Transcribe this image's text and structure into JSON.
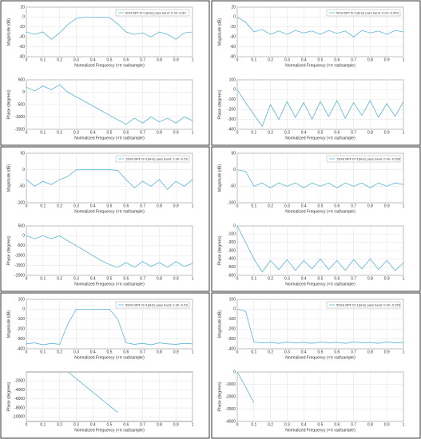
{
  "chart_data": [
    {
      "type": "line",
      "xlabel": "Normalized Frequency  (×π rad/sample)",
      "ylabel": "Magnitude (dB)",
      "x": [
        0,
        0.05,
        0.1,
        0.15,
        0.2,
        0.25,
        0.3,
        0.35,
        0.4,
        0.45,
        0.5,
        0.55,
        0.6,
        0.65,
        0.7,
        0.75,
        0.8,
        0.85,
        0.9,
        0.95,
        1
      ],
      "xlim": [
        0,
        1
      ],
      "xticks": [
        0,
        0.1,
        0.2,
        0.3,
        0.4,
        0.5,
        0.6,
        0.7,
        0.8,
        0.9,
        1
      ],
      "ylim": [
        -80,
        20
      ],
      "yticks": [
        20,
        0,
        -20,
        -40,
        -60,
        -80
      ],
      "grid": true,
      "series": [
        {
          "name": "50rd BPF fs=1(kHz) pass band: 0.3π~0.5π",
          "color": "#5ab4d6",
          "values": [
            -30,
            -35,
            -30,
            -45,
            -32,
            -15,
            -3,
            0,
            0,
            0,
            -1,
            -14,
            -30,
            -35,
            -32,
            -40,
            -30,
            -35,
            -45,
            -32,
            -30
          ]
        }
      ]
    },
    {
      "type": "line",
      "xlabel": "Normalized Frequency  (×π rad/sample)",
      "ylabel": "Phase (degrees)",
      "x": [
        0,
        0.05,
        0.1,
        0.15,
        0.2,
        0.25,
        0.3,
        0.35,
        0.4,
        0.45,
        0.5,
        0.55,
        0.6,
        0.65,
        0.7,
        0.75,
        0.8,
        0.85,
        0.9,
        0.95,
        1
      ],
      "xlim": [
        0,
        1
      ],
      "xticks": [
        0,
        0.1,
        0.2,
        0.3,
        0.4,
        0.5,
        0.6,
        0.7,
        0.8,
        0.9,
        1
      ],
      "ylim": [
        -1500,
        500
      ],
      "yticks": [
        500,
        0,
        -500,
        -1000,
        -1500
      ],
      "grid": true,
      "series": [
        {
          "color": "#5ab4d6",
          "values": [
            200,
            50,
            250,
            100,
            300,
            0,
            -186,
            -371,
            -557,
            -743,
            -929,
            -1114,
            -1300,
            -1050,
            -1250,
            -1000,
            -1200,
            -1050,
            -1250,
            -1000,
            -1150
          ]
        }
      ]
    },
    {
      "type": "line",
      "xlabel": "Normalized Frequency  (×π rad/sample)",
      "ylabel": "Magnitude (dB)",
      "x": [
        0,
        0.05,
        0.1,
        0.15,
        0.2,
        0.25,
        0.3,
        0.35,
        0.4,
        0.45,
        0.5,
        0.55,
        0.6,
        0.65,
        0.7,
        0.75,
        0.8,
        0.85,
        0.9,
        0.95,
        1
      ],
      "xlim": [
        0,
        1
      ],
      "xticks": [
        0,
        0.1,
        0.2,
        0.3,
        0.4,
        0.5,
        0.6,
        0.7,
        0.8,
        0.9,
        1
      ],
      "ylim": [
        -80,
        20
      ],
      "yticks": [
        20,
        0,
        -20,
        -40,
        -60,
        -80
      ],
      "grid": true,
      "series": [
        {
          "name": "50rd BPF fs=1(kHz) pass band: 0.0π~0.05π",
          "color": "#5ab4d6",
          "values": [
            0,
            -10,
            -30,
            -25,
            -35,
            -28,
            -35,
            -27,
            -32,
            -28,
            -35,
            -27,
            -33,
            -28,
            -40,
            -27,
            -32,
            -28,
            -35,
            -27,
            -30
          ]
        }
      ]
    },
    {
      "type": "line",
      "xlabel": "Normalized Frequency  (×π rad/sample)",
      "ylabel": "Phase (degrees)",
      "x": [
        0,
        0.05,
        0.1,
        0.15,
        0.2,
        0.25,
        0.3,
        0.35,
        0.4,
        0.45,
        0.5,
        0.55,
        0.6,
        0.65,
        0.7,
        0.75,
        0.8,
        0.85,
        0.9,
        0.95,
        1
      ],
      "xlim": [
        0,
        1
      ],
      "xticks": [
        0,
        0.1,
        0.2,
        0.3,
        0.4,
        0.5,
        0.6,
        0.7,
        0.8,
        0.9,
        1
      ],
      "ylim": [
        -400,
        100
      ],
      "yticks": [
        100,
        0,
        -100,
        -200,
        -300,
        -400
      ],
      "grid": true,
      "series": [
        {
          "color": "#5ab4d6",
          "values": [
            0,
            -130,
            -250,
            -370,
            -150,
            -300,
            -120,
            -280,
            -130,
            -300,
            -120,
            -270,
            -110,
            -290,
            -130,
            -260,
            -110,
            -280,
            -140,
            -270,
            -120
          ]
        }
      ]
    },
    {
      "type": "line",
      "xlabel": "Normalized Frequency  (×π rad/sample)",
      "ylabel": "Magnitude (dB)",
      "x": [
        0,
        0.05,
        0.1,
        0.15,
        0.2,
        0.25,
        0.3,
        0.35,
        0.4,
        0.45,
        0.5,
        0.55,
        0.6,
        0.65,
        0.7,
        0.75,
        0.8,
        0.85,
        0.9,
        0.95,
        1
      ],
      "xlim": [
        0,
        1
      ],
      "xticks": [
        0,
        0.1,
        0.2,
        0.3,
        0.4,
        0.5,
        0.6,
        0.7,
        0.8,
        0.9,
        1
      ],
      "ylim": [
        -100,
        50
      ],
      "yticks": [
        50,
        0,
        -50,
        -100
      ],
      "grid": true,
      "series": [
        {
          "name": "150rd BPF fs=1(kHz) pass band: 0.3π~0.5π",
          "color": "#5ab4d6",
          "values": [
            -30,
            -50,
            -35,
            -45,
            -30,
            -20,
            0,
            0,
            0,
            0,
            0,
            -2,
            -30,
            -55,
            -35,
            -50,
            -30,
            -60,
            -35,
            -50,
            -30
          ]
        }
      ]
    },
    {
      "type": "line",
      "xlabel": "Normalized Frequency  (×π rad/sample)",
      "ylabel": "Phase (degrees)",
      "x": [
        0,
        0.05,
        0.1,
        0.15,
        0.2,
        0.25,
        0.3,
        0.35,
        0.4,
        0.45,
        0.5,
        0.55,
        0.6,
        0.65,
        0.7,
        0.75,
        0.8,
        0.85,
        0.9,
        0.95,
        1
      ],
      "xlim": [
        0,
        1
      ],
      "xticks": [
        0,
        0.1,
        0.2,
        0.3,
        0.4,
        0.5,
        0.6,
        0.7,
        0.8,
        0.9,
        1
      ],
      "ylim": [
        -2000,
        500
      ],
      "yticks": [
        500,
        0,
        -500,
        -1000,
        -1500,
        -2000
      ],
      "grid": true,
      "series": [
        {
          "color": "#5ab4d6",
          "values": [
            0,
            -150,
            0,
            -150,
            0,
            -250,
            -500,
            -750,
            -1000,
            -1250,
            -1450,
            -1600,
            -1350,
            -1600,
            -1300,
            -1550,
            -1350,
            -1600,
            -1300,
            -1550,
            -1400
          ]
        }
      ]
    },
    {
      "type": "line",
      "xlabel": "Normalized Frequency  (×π rad/sample)",
      "ylabel": "Magnitude (dB)",
      "x": [
        0,
        0.05,
        0.1,
        0.15,
        0.2,
        0.25,
        0.3,
        0.35,
        0.4,
        0.45,
        0.5,
        0.55,
        0.6,
        0.65,
        0.7,
        0.75,
        0.8,
        0.85,
        0.9,
        0.95,
        1
      ],
      "xlim": [
        0,
        1
      ],
      "xticks": [
        0,
        0.1,
        0.2,
        0.3,
        0.4,
        0.5,
        0.6,
        0.7,
        0.8,
        0.9,
        1
      ],
      "ylim": [
        -100,
        50
      ],
      "yticks": [
        50,
        0,
        -50,
        -100
      ],
      "grid": true,
      "series": [
        {
          "name": "150rd BPF fs=1(kHz) pass band: 0.0π~0.05π",
          "color": "#5ab4d6",
          "values": [
            0,
            -5,
            -50,
            -40,
            -55,
            -40,
            -50,
            -40,
            -55,
            -40,
            -50,
            -40,
            -55,
            -40,
            -50,
            -40,
            -55,
            -40,
            -50,
            -40,
            -45
          ]
        }
      ]
    },
    {
      "type": "line",
      "xlabel": "Normalized Frequency  (×π rad/sample)",
      "ylabel": "Phase (degrees)",
      "x": [
        0,
        0.05,
        0.1,
        0.15,
        0.2,
        0.25,
        0.3,
        0.35,
        0.4,
        0.45,
        0.5,
        0.55,
        0.6,
        0.65,
        0.7,
        0.75,
        0.8,
        0.85,
        0.9,
        0.95,
        1
      ],
      "xlim": [
        0,
        1
      ],
      "xticks": [
        0,
        0.1,
        0.2,
        0.3,
        0.4,
        0.5,
        0.6,
        0.7,
        0.8,
        0.9,
        1
      ],
      "ylim": [
        -600,
        0
      ],
      "yticks": [
        0,
        -100,
        -200,
        -300,
        -400,
        -500,
        -600
      ],
      "grid": true,
      "series": [
        {
          "color": "#5ab4d6",
          "values": [
            0,
            -200,
            -400,
            -560,
            -420,
            -530,
            -410,
            -540,
            -420,
            -520,
            -400,
            -530,
            -420,
            -540,
            -410,
            -520,
            -400,
            -530,
            -420,
            -540,
            -450
          ]
        }
      ]
    },
    {
      "type": "line",
      "xlabel": "Normalized Frequency  (×π rad/sample)",
      "ylabel": "Magnitude (dB)",
      "x": [
        0,
        0.05,
        0.1,
        0.15,
        0.2,
        0.25,
        0.3,
        0.35,
        0.4,
        0.45,
        0.5,
        0.55,
        0.6,
        0.65,
        0.7,
        0.75,
        0.8,
        0.85,
        0.9,
        0.95,
        1
      ],
      "xlim": [
        0,
        1
      ],
      "xticks": [
        0,
        0.1,
        0.2,
        0.3,
        0.4,
        0.5,
        0.6,
        0.7,
        0.8,
        0.9,
        1
      ],
      "ylim": [
        -400,
        100
      ],
      "yticks": [
        100,
        0,
        -100,
        -200,
        -300,
        -400
      ],
      "grid": true,
      "series": [
        {
          "name": "500rd BPF fs=1(kHz) pass band: 0.3π~0.5π",
          "color": "#5ab4d6",
          "values": [
            -350,
            -340,
            -360,
            -345,
            -355,
            -150,
            0,
            0,
            0,
            0,
            0,
            -100,
            -340,
            -355,
            -345,
            -360,
            -340,
            -350,
            -355,
            -345,
            -350
          ]
        }
      ]
    },
    {
      "type": "line",
      "xlabel": "Normalized Frequency  (×π rad/sample)",
      "ylabel": "Phase (degrees)",
      "x": [
        0,
        0.05,
        0.1,
        0.15,
        0.2,
        0.25,
        0.3,
        0.35,
        0.4,
        0.45,
        0.5,
        0.55,
        0.6,
        0.65,
        0.7,
        0.75,
        0.8,
        0.85,
        0.9,
        0.95,
        1
      ],
      "xlim": [
        0,
        1
      ],
      "xticks": [
        0,
        0.1,
        0.2,
        0.3,
        0.4,
        0.5,
        0.6,
        0.7,
        0.8,
        0.9,
        1
      ],
      "ylim": [
        -11000,
        0
      ],
      "yticks": [
        -2000,
        -4000,
        -6000,
        -8000,
        -10000
      ],
      "grid": true,
      "series": [
        {
          "color": "#5ab4d6",
          "values": [
            null,
            null,
            null,
            null,
            null,
            0,
            -1500,
            -3000,
            -4500,
            -6000,
            -7500,
            -9000,
            null,
            null,
            null,
            null,
            null,
            null,
            null,
            null,
            null
          ]
        }
      ]
    },
    {
      "type": "line",
      "xlabel": "Normalized Frequency  (×π rad/sample)",
      "ylabel": "Magnitude (dB)",
      "x": [
        0,
        0.05,
        0.1,
        0.15,
        0.2,
        0.25,
        0.3,
        0.35,
        0.4,
        0.45,
        0.5,
        0.55,
        0.6,
        0.65,
        0.7,
        0.75,
        0.8,
        0.85,
        0.9,
        0.95,
        1
      ],
      "xlim": [
        0,
        1
      ],
      "xticks": [
        0,
        0.1,
        0.2,
        0.3,
        0.4,
        0.5,
        0.6,
        0.7,
        0.8,
        0.9,
        1
      ],
      "ylim": [
        -400,
        100
      ],
      "yticks": [
        100,
        0,
        -100,
        -200,
        -300,
        -400
      ],
      "grid": true,
      "series": [
        {
          "name": "500rd BPF fs=1(kHz) pass band: 0.0π~0.05π",
          "color": "#5ab4d6",
          "values": [
            0,
            -20,
            -330,
            -340,
            -335,
            -345,
            -330,
            -340,
            -335,
            -345,
            -330,
            -340,
            -335,
            -345,
            -330,
            -340,
            -335,
            -345,
            -330,
            -340,
            -335
          ]
        }
      ]
    },
    {
      "type": "line",
      "xlabel": "Normalized Frequency  (×π rad/sample)",
      "ylabel": "Phase (degrees)",
      "x": [
        0,
        0.05,
        0.1,
        0.15,
        0.2,
        0.25,
        0.3,
        0.35,
        0.4,
        0.45,
        0.5,
        0.55,
        0.6,
        0.65,
        0.7,
        0.75,
        0.8,
        0.85,
        0.9,
        0.95,
        1
      ],
      "xlim": [
        0,
        1
      ],
      "xticks": [
        0,
        0.1,
        0.2,
        0.3,
        0.4,
        0.5,
        0.6,
        0.7,
        0.8,
        0.9,
        1
      ],
      "ylim": [
        -4000,
        0
      ],
      "yticks": [
        0,
        -1000,
        -2000,
        -3000,
        -4000
      ],
      "grid": true,
      "series": [
        {
          "color": "#5ab4d6",
          "values": [
            0,
            -1200,
            -2500,
            null,
            null,
            null,
            null,
            null,
            null,
            null,
            null,
            null,
            null,
            null,
            null,
            null,
            null,
            null,
            null,
            null,
            null
          ]
        }
      ]
    }
  ]
}
